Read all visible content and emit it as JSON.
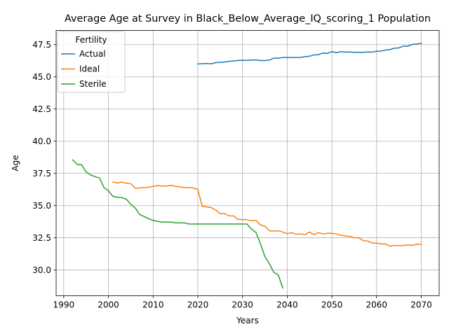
{
  "chart_data": {
    "type": "line",
    "title": "Average Age at Survey in Black_Below_Average_IQ_scoring_1 Population",
    "xlabel": "Years",
    "ylabel": "Age",
    "xlim": [
      1988.3,
      2074.0
    ],
    "ylim": [
      28.0,
      48.6
    ],
    "xticks": [
      1990,
      2000,
      2010,
      2020,
      2030,
      2040,
      2050,
      2060,
      2070
    ],
    "yticks": [
      "30.0",
      "32.5",
      "35.0",
      "37.5",
      "40.0",
      "42.5",
      "45.0",
      "47.5"
    ],
    "ytick_values": [
      30.0,
      32.5,
      35.0,
      37.5,
      40.0,
      42.5,
      45.0,
      47.5
    ],
    "grid": true,
    "legend": {
      "title": "Fertility",
      "placement": "top-left"
    },
    "series": [
      {
        "name": "Actual",
        "color": "#1f77b4",
        "x": [
          2020,
          2021,
          2022,
          2023,
          2024,
          2025,
          2026,
          2027,
          2028,
          2029,
          2030,
          2031,
          2032,
          2033,
          2034,
          2035,
          2036,
          2037,
          2038,
          2039,
          2040,
          2041,
          2042,
          2043,
          2044,
          2045,
          2046,
          2047,
          2048,
          2049,
          2050,
          2051,
          2052,
          2053,
          2054,
          2055,
          2056,
          2057,
          2058,
          2059,
          2060,
          2061,
          2062,
          2063,
          2064,
          2065,
          2066,
          2067,
          2068,
          2069,
          2070
        ],
        "y": [
          46.0,
          46.02,
          46.03,
          46.01,
          46.1,
          46.13,
          46.15,
          46.2,
          46.23,
          46.27,
          46.28,
          46.28,
          46.3,
          46.32,
          46.26,
          46.26,
          46.3,
          46.45,
          46.45,
          46.5,
          46.5,
          46.5,
          46.5,
          46.51,
          46.56,
          46.6,
          46.7,
          46.72,
          46.85,
          46.82,
          46.95,
          46.88,
          46.95,
          46.92,
          46.93,
          46.9,
          46.91,
          46.9,
          46.93,
          46.92,
          46.98,
          47.0,
          47.08,
          47.12,
          47.22,
          47.25,
          47.38,
          47.38,
          47.52,
          47.55,
          47.6
        ]
      },
      {
        "name": "Ideal",
        "color": "#ff7f0e",
        "x": [
          2001,
          2002,
          2003,
          2004,
          2005,
          2006,
          2007,
          2008,
          2009,
          2010,
          2011,
          2012,
          2013,
          2014,
          2015,
          2016,
          2017,
          2018,
          2019,
          2020,
          2021,
          2022,
          2023,
          2024,
          2025,
          2026,
          2027,
          2028,
          2029,
          2030,
          2031,
          2032,
          2033,
          2034,
          2035,
          2036,
          2037,
          2038,
          2039,
          2040,
          2041,
          2042,
          2043,
          2044,
          2045,
          2046,
          2047,
          2048,
          2049,
          2050,
          2051,
          2052,
          2053,
          2054,
          2055,
          2056,
          2057,
          2058,
          2059,
          2060,
          2061,
          2062,
          2063,
          2064,
          2065,
          2066,
          2067,
          2068,
          2069,
          2070
        ],
        "y": [
          36.85,
          36.75,
          36.83,
          36.73,
          36.7,
          36.35,
          36.37,
          36.4,
          36.42,
          36.5,
          36.55,
          36.52,
          36.52,
          36.57,
          36.5,
          36.45,
          36.4,
          36.4,
          36.37,
          36.25,
          34.93,
          34.9,
          34.85,
          34.65,
          34.38,
          34.38,
          34.2,
          34.2,
          33.93,
          33.92,
          33.9,
          33.82,
          33.85,
          33.5,
          33.4,
          33.05,
          33.02,
          33.05,
          32.95,
          32.82,
          32.9,
          32.78,
          32.8,
          32.75,
          32.95,
          32.75,
          32.9,
          32.8,
          32.85,
          32.85,
          32.8,
          32.7,
          32.65,
          32.62,
          32.5,
          32.5,
          32.28,
          32.25,
          32.1,
          32.1,
          32.02,
          32.02,
          31.85,
          31.9,
          31.9,
          31.9,
          31.95,
          31.92,
          32.0,
          31.98
        ]
      },
      {
        "name": "Sterile",
        "color": "#2ca02c",
        "x": [
          1992,
          1993,
          1994,
          1995,
          1996,
          1997,
          1998,
          1999,
          2000,
          2001,
          2002,
          2003,
          2004,
          2005,
          2006,
          2007,
          2008,
          2009,
          2010,
          2011,
          2012,
          2013,
          2014,
          2015,
          2016,
          2017,
          2018,
          2019,
          2020,
          2021,
          2022,
          2023,
          2024,
          2025,
          2026,
          2027,
          2028,
          2029,
          2030,
          2031,
          2032,
          2033,
          2034,
          2035,
          2036,
          2037,
          2038,
          2039
        ],
        "y": [
          38.55,
          38.2,
          38.17,
          37.62,
          37.38,
          37.25,
          37.15,
          36.4,
          36.15,
          35.72,
          35.65,
          35.62,
          35.5,
          35.1,
          34.82,
          34.3,
          34.15,
          33.98,
          33.85,
          33.78,
          33.72,
          33.72,
          33.72,
          33.66,
          33.66,
          33.66,
          33.57,
          33.57,
          33.57,
          33.57,
          33.57,
          33.57,
          33.57,
          33.57,
          33.57,
          33.57,
          33.57,
          33.57,
          33.57,
          33.57,
          33.18,
          32.92,
          32.05,
          31.05,
          30.5,
          29.82,
          29.62,
          28.6
        ]
      }
    ]
  }
}
